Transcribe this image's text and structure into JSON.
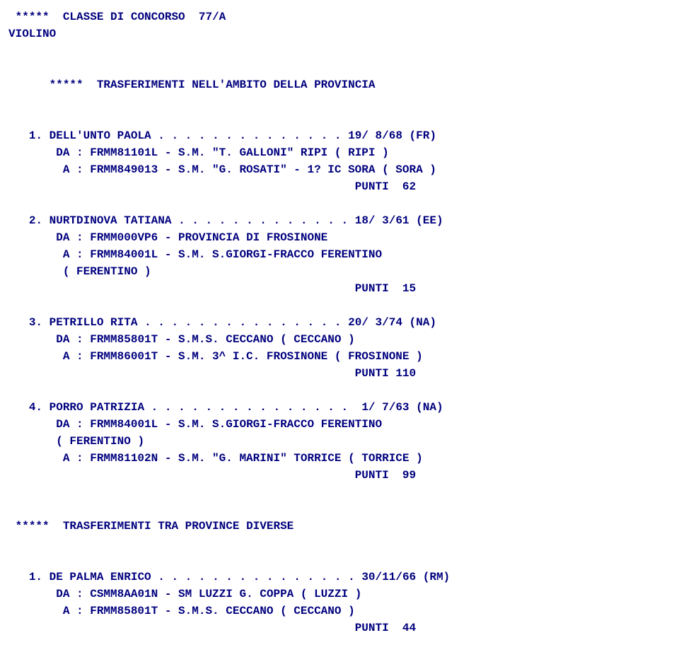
{
  "document": {
    "fontFamily": "Courier New",
    "fontSize": 16,
    "textColor": "#00007e",
    "backgroundColor": "#ffffff",
    "header": {
      "stars": "*****",
      "classeLabel": "CLASSE DI CONCORSO",
      "classeCode": "77/A",
      "instrument": "VIOLINO"
    },
    "section1": {
      "stars": "*****",
      "title": "TRASFERIMENTI NELL'AMBITO DELLA PROVINCIA"
    },
    "entries1": [
      {
        "num": "1.",
        "name": "DELL'UNTO PAOLA",
        "dots": ". . . . . . . . . . . . . .",
        "date": "19/ 8/68",
        "region": "(FR)",
        "da": "DA : FRMM81101L - S.M. \"T. GALLONI\" RIPI ( RIPI )",
        "a": "A : FRMM849013 - S.M. \"G. ROSATI\" - 1? IC SORA ( SORA )",
        "puntiLabel": "PUNTI",
        "puntiVal": "62"
      },
      {
        "num": "2.",
        "name": "NURTDINOVA TATIANA",
        "dots": ". . . . . . . . . . . . .",
        "date": "18/ 3/61",
        "region": "(EE)",
        "da": "DA : FRMM000VP6 - PROVINCIA DI FROSINONE",
        "a": "A : FRMM84001L - S.M. S.GIORGI-FRACCO FERENTINO",
        "aExtra": "( FERENTINO )",
        "puntiLabel": "PUNTI",
        "puntiVal": "15"
      },
      {
        "num": "3.",
        "name": "PETRILLO RITA",
        "dots": ". . . . . . . . . . . . . . .",
        "date": "20/ 3/74",
        "region": "(NA)",
        "da": "DA : FRMM85801T - S.M.S. CECCANO ( CECCANO )",
        "a": "A : FRMM86001T - S.M. 3^ I.C. FROSINONE ( FROSINONE )",
        "puntiLabel": "PUNTI",
        "puntiVal": "110"
      },
      {
        "num": "4.",
        "name": "PORRO PATRIZIA",
        "dots": ". . . . . . . . . . . . . . .",
        "date": "1/ 7/63",
        "region": "(NA)",
        "da": "DA : FRMM84001L - S.M. S.GIORGI-FRACCO FERENTINO",
        "daExtra": "( FERENTINO )",
        "a": "A : FRMM81102N - S.M. \"G. MARINI\" TORRICE ( TORRICE )",
        "puntiLabel": "PUNTI",
        "puntiVal": "99"
      }
    ],
    "section2": {
      "stars": "*****",
      "title": "TRASFERIMENTI TRA PROVINCE DIVERSE"
    },
    "entries2": [
      {
        "num": "1.",
        "name": "DE PALMA ENRICO",
        "dots": ". . . . . . . . . . . . . . .",
        "date": "30/11/66",
        "region": "(RM)",
        "da": "DA : CSMM8AA01N - SM LUZZI G. COPPA ( LUZZI )",
        "a": "A : FRMM85801T - S.M.S. CECCANO ( CECCANO )",
        "puntiLabel": "PUNTI",
        "puntiVal": "44"
      }
    ]
  }
}
